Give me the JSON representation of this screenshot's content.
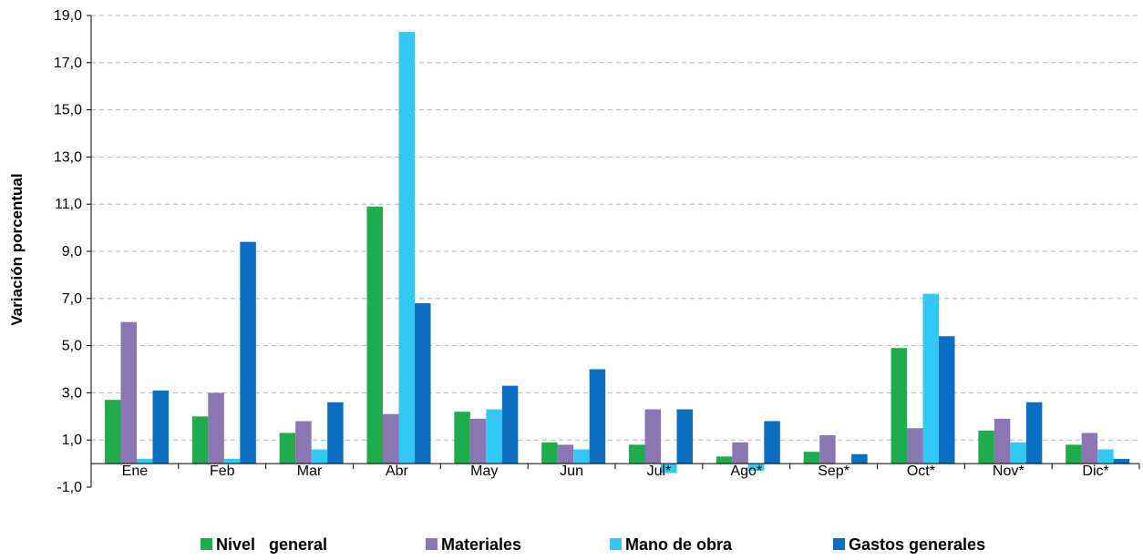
{
  "chart_data": {
    "type": "bar",
    "title": "",
    "xlabel": "",
    "ylabel": "Variación porcentual",
    "ylim": [
      -1,
      19
    ],
    "yticks": [
      "-1,0",
      "1,0",
      "3,0",
      "5,0",
      "7,0",
      "9,0",
      "11,0",
      "13,0",
      "15,0",
      "17,0",
      "19,0"
    ],
    "categories": [
      "Ene",
      "Feb",
      "Mar",
      "Abr",
      "May",
      "Jun",
      "Jul*",
      "Ago*",
      "Sep*",
      "Oct*",
      "Nov*",
      "Dic*"
    ],
    "grid": true,
    "legend_position": "bottom",
    "series": [
      {
        "name": "Nivel   general",
        "color": "#1fac4d",
        "values": [
          2.7,
          2.0,
          1.3,
          10.9,
          2.2,
          0.9,
          0.8,
          0.3,
          0.5,
          4.9,
          1.4,
          0.8
        ]
      },
      {
        "name": "Materiales",
        "color": "#8b75b3",
        "values": [
          6.0,
          3.0,
          1.8,
          2.1,
          1.9,
          0.8,
          2.3,
          0.9,
          1.2,
          1.5,
          1.9,
          1.3
        ]
      },
      {
        "name": "Mano de obra",
        "color": "#33c7f4",
        "values": [
          0.2,
          0.2,
          0.6,
          18.3,
          2.3,
          0.6,
          -0.4,
          -0.3,
          0.0,
          7.2,
          0.9,
          0.6
        ]
      },
      {
        "name": "Gastos generales",
        "color": "#0a6fc3",
        "values": [
          3.1,
          9.4,
          2.6,
          6.8,
          3.3,
          4.0,
          2.3,
          1.8,
          0.4,
          5.4,
          2.6,
          0.2
        ]
      }
    ]
  }
}
